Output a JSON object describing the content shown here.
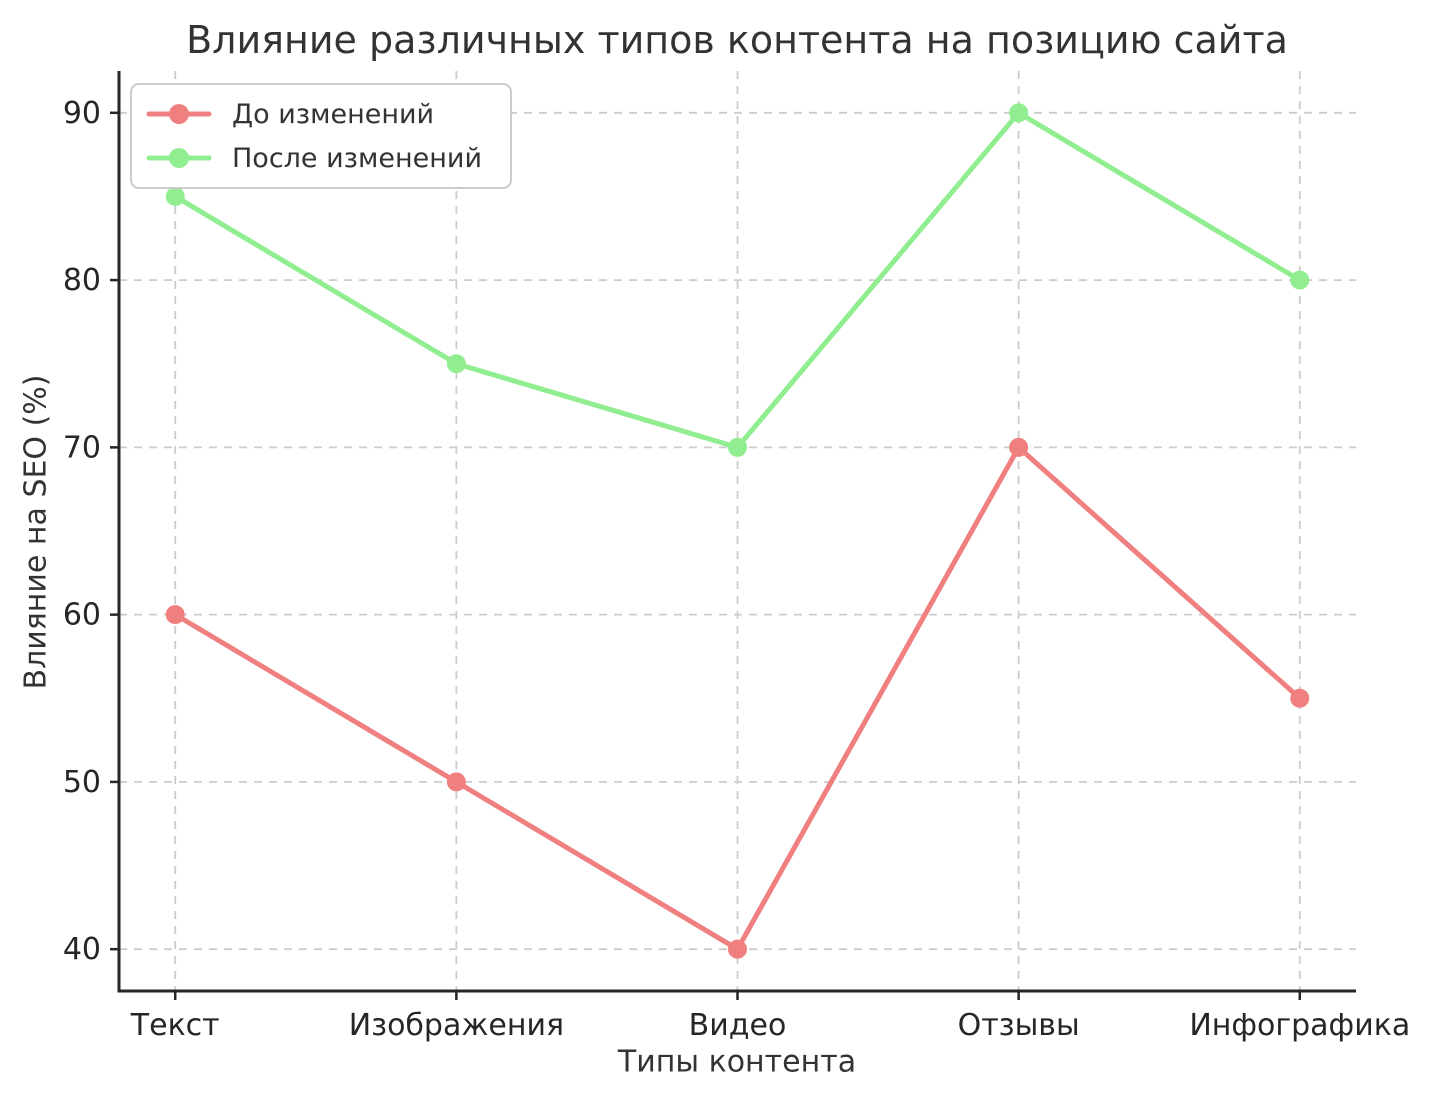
{
  "title": "Влияние различных типов контента на позицию сайта",
  "chart_data": {
    "type": "line",
    "title": "Влияние различных типов контента на позицию сайта",
    "xlabel": "Типы контента",
    "ylabel": "Влияние на SEO (%)",
    "categories": [
      "Текст",
      "Изображения",
      "Видео",
      "Отзывы",
      "Инфографика"
    ],
    "series": [
      {
        "name": "До изменений",
        "values": [
          60,
          50,
          40,
          70,
          55
        ],
        "color": "#f08080"
      },
      {
        "name": "После изменений",
        "values": [
          85,
          75,
          70,
          90,
          80
        ],
        "color": "#90ee90"
      }
    ],
    "yticks": [
      40,
      50,
      60,
      70,
      80,
      90
    ],
    "ylim": [
      37.5,
      92.5
    ],
    "xlim": [
      -0.2,
      4.2
    ],
    "grid": "dashed",
    "legend_position": "upper left"
  },
  "style": {
    "grid_color": "#cccccc",
    "spine_color": "#262626",
    "tick_text_color": "#262626",
    "text_color": "#333333",
    "background": "#ffffff",
    "line_width": 5,
    "marker_radius": 9.5
  }
}
